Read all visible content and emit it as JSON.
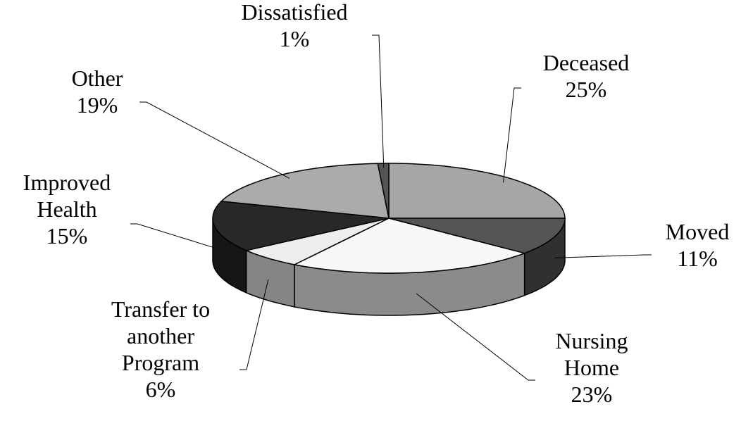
{
  "chart_data": {
    "type": "pie",
    "style": "3d",
    "categories": [
      "Deceased",
      "Moved",
      "Nursing Home",
      "Transfer to another Program",
      "Improved Health",
      "Other",
      "Dissatisfied"
    ],
    "values": [
      25,
      11,
      23,
      6,
      15,
      19,
      1
    ],
    "value_labels": [
      "25%",
      "11%",
      "23%",
      "6%",
      "15%",
      "19%",
      "1%"
    ],
    "colors": [
      "#a6a6a6",
      "#555555",
      "#f8f8f8",
      "#eeeeee",
      "#282828",
      "#ababab",
      "#555555"
    ]
  }
}
